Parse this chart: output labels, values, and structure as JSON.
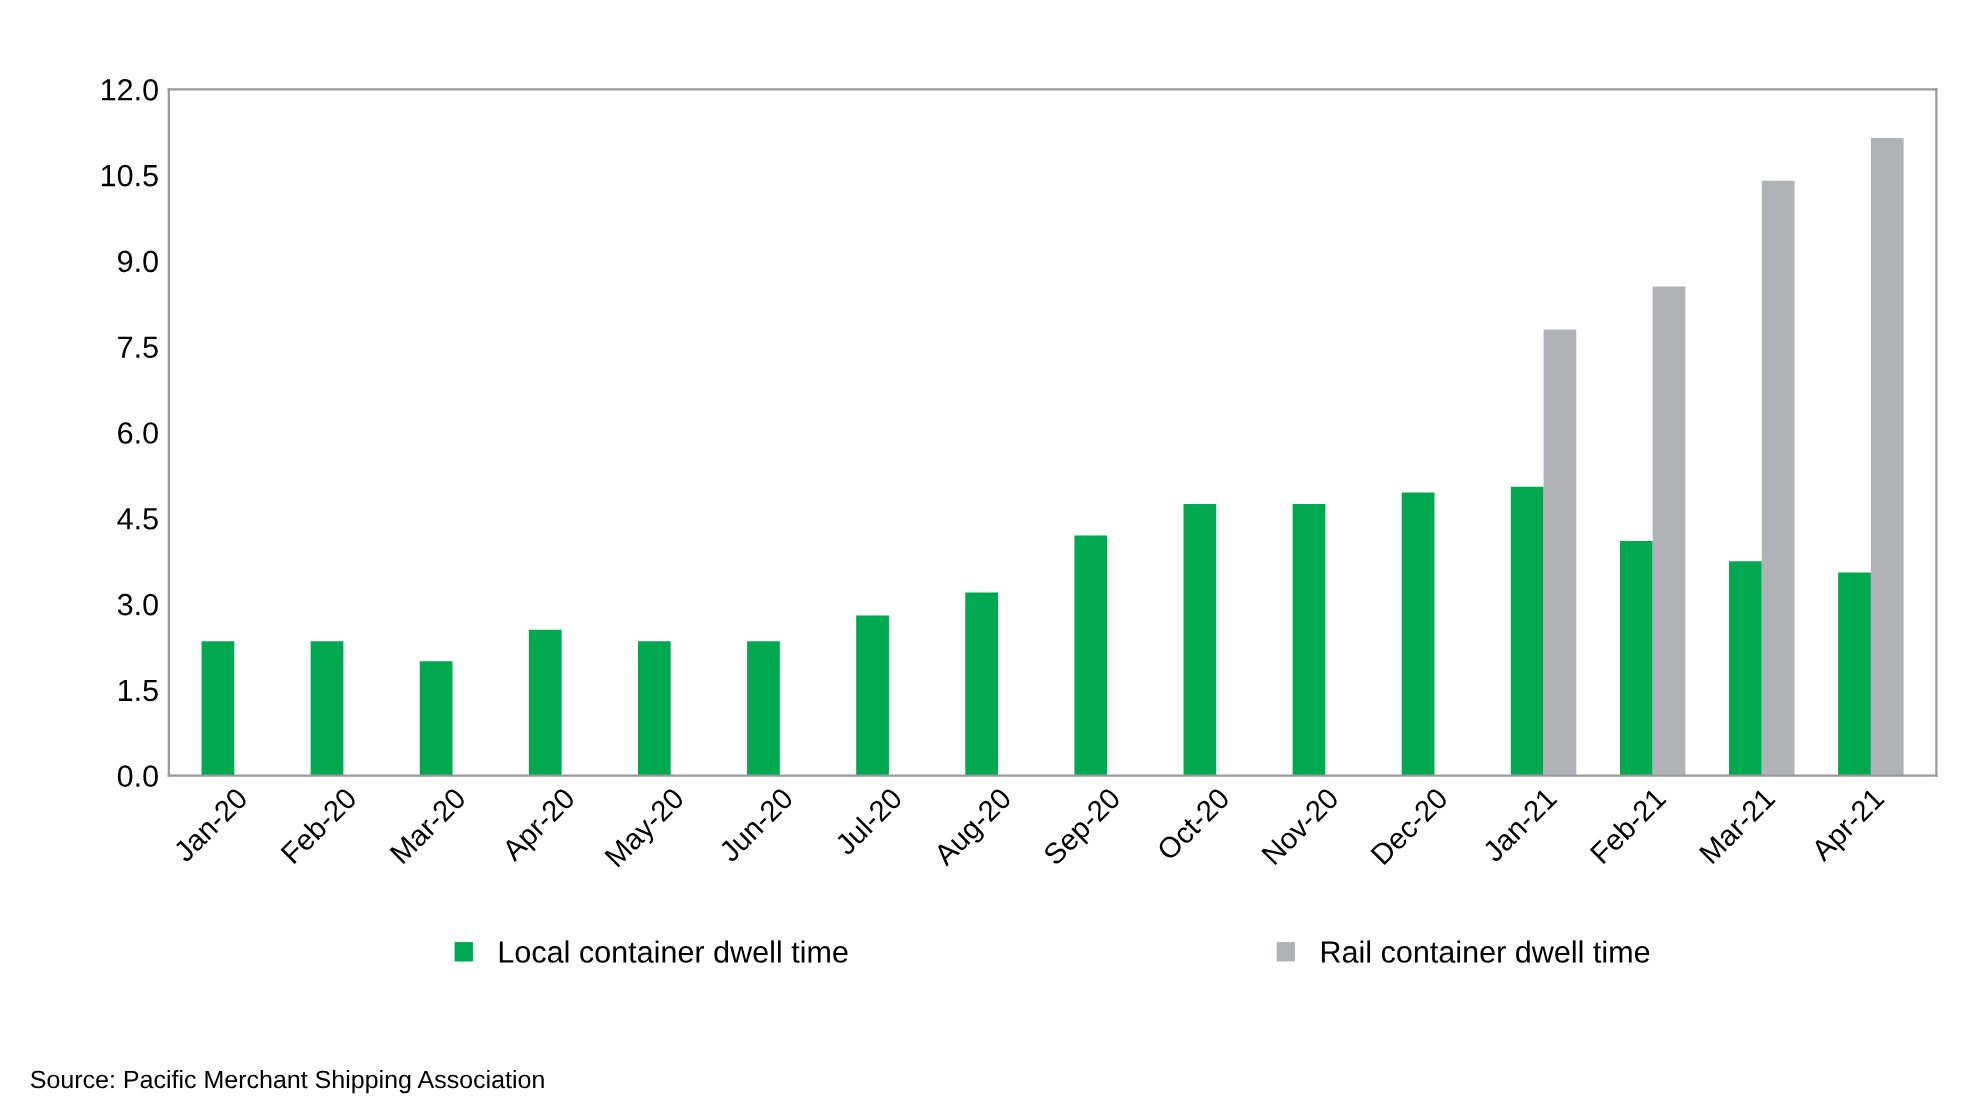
{
  "chart_data": {
    "type": "bar",
    "categories": [
      "Jan-20",
      "Feb-20",
      "Mar-20",
      "Apr-20",
      "May-20",
      "Jun-20",
      "Jul-20",
      "Aug-20",
      "Sep-20",
      "Oct-20",
      "Nov-20",
      "Dec-20",
      "Jan-21",
      "Feb-21",
      "Mar-21",
      "Apr-21"
    ],
    "series": [
      {
        "name": "Local container dwell time",
        "color": "#00a84f",
        "values": [
          2.35,
          2.35,
          2.0,
          2.55,
          2.35,
          2.35,
          2.8,
          3.2,
          4.2,
          4.75,
          4.75,
          4.95,
          5.05,
          4.1,
          3.75,
          3.55
        ]
      },
      {
        "name": "Rail container dwell time",
        "color": "#b1b2b6",
        "values": [
          null,
          null,
          null,
          null,
          null,
          null,
          null,
          null,
          null,
          null,
          null,
          null,
          7.8,
          8.55,
          10.4,
          11.15
        ]
      }
    ],
    "ylim": [
      0,
      12
    ],
    "yticks": [
      {
        "value": 0,
        "label": "0.0"
      },
      1.5,
      {
        "value": 3,
        "label": "3.0"
      },
      4.5,
      {
        "value": 6,
        "label": "6.0"
      },
      7.5,
      {
        "value": 9,
        "label": "9.0"
      },
      10.5,
      {
        "value": 12,
        "label": "12.0"
      }
    ],
    "grid": false,
    "legend": "bottom",
    "annotations": [
      "Source: Pacific Merchant Shipping Association"
    ]
  }
}
